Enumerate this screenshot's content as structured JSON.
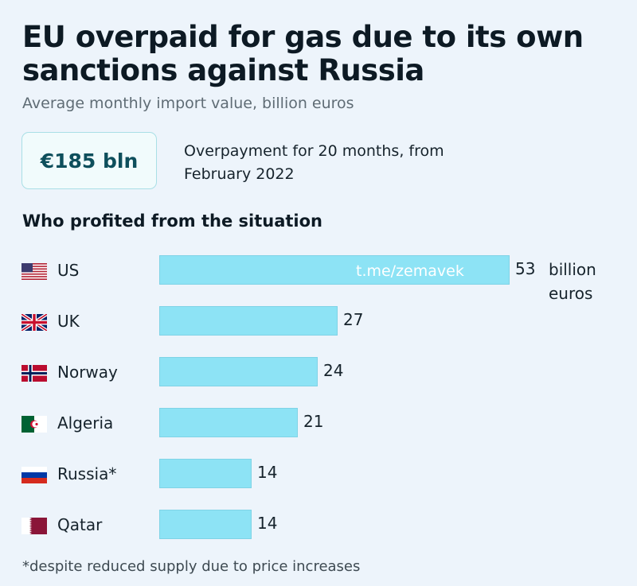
{
  "header": {
    "title": "EU overpaid for gas due to its own sanctions against Russia",
    "subtitle": "Average monthly import value, billion euros"
  },
  "summary": {
    "value": "€185 bln",
    "description": "Overpayment for 20 months, from February 2022"
  },
  "section": {
    "title": "Who profited from the situation"
  },
  "chart_data": {
    "type": "bar",
    "orientation": "horizontal",
    "categories": [
      "US",
      "UK",
      "Norway",
      "Algeria",
      "Russia*",
      "Qatar"
    ],
    "values": [
      53,
      27,
      24,
      21,
      14,
      14
    ],
    "value_labels": [
      "53",
      "27",
      "24",
      "21",
      "14",
      "14"
    ],
    "unit_label": "billion euros",
    "xlim": [
      0,
      53
    ],
    "bar_color": "#8de3f5"
  },
  "flags": [
    "us-flag-icon",
    "uk-flag-icon",
    "norway-flag-icon",
    "algeria-flag-icon",
    "russia-flag-icon",
    "qatar-flag-icon"
  ],
  "watermark": "t.me/zemavek",
  "footnote": "*despite reduced supply due to price increases"
}
